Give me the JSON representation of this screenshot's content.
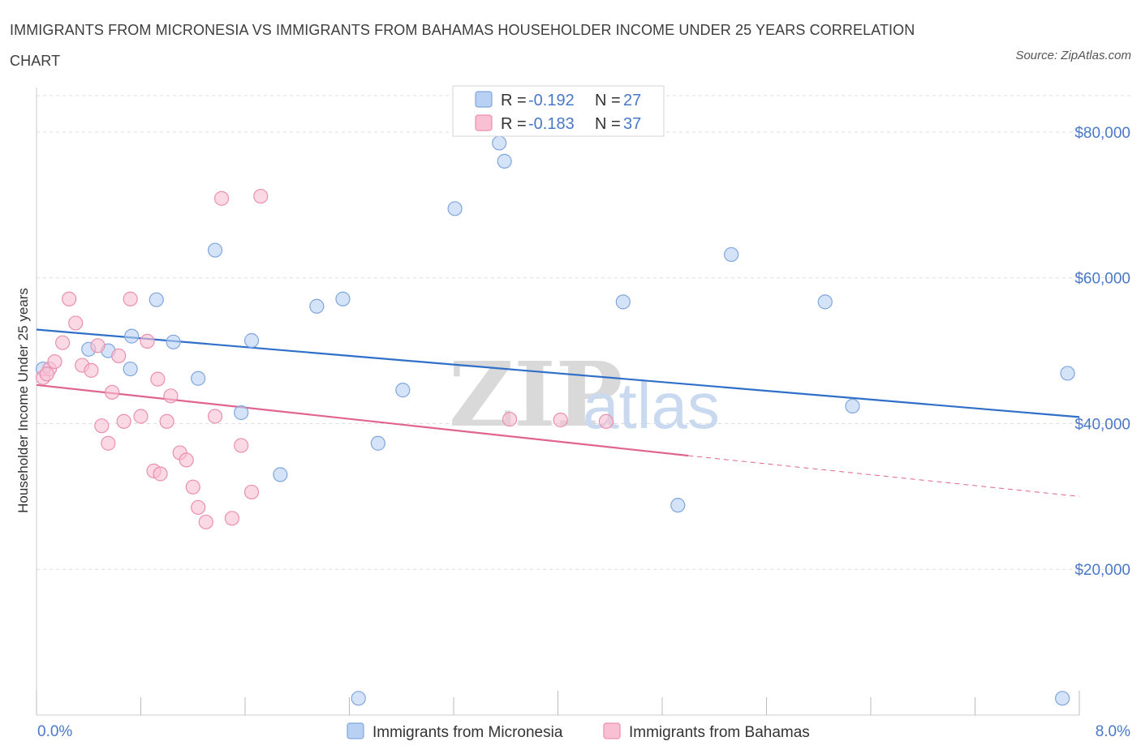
{
  "title": "IMMIGRANTS FROM MICRONESIA VS IMMIGRANTS FROM BAHAMAS HOUSEHOLDER INCOME UNDER 25 YEARS CORRELATION CHART",
  "source": "Source: ZipAtlas.com",
  "watermark": {
    "zip": "ZIP",
    "atlas": "atlas"
  },
  "colors": {
    "micronesia_fill": "#b8d0f2",
    "micronesia_stroke": "#7fa6de",
    "micronesia_line": "#2f6fc8",
    "bahamas_fill": "#f8c0d2",
    "bahamas_stroke": "#eb8fae",
    "bahamas_line": "#e0648e",
    "grid": "#dddddd",
    "tick_text": "#4a78c8"
  },
  "legend": {
    "rows": [
      {
        "r_label": "R = ",
        "r_value": "-0.192",
        "n_label": "N = ",
        "n_value": "27"
      },
      {
        "r_label": "R = ",
        "r_value": "-0.183",
        "n_label": "N = ",
        "n_value": "37"
      }
    ]
  },
  "chart_data": {
    "type": "scatter",
    "title": "IMMIGRANTS FROM MICRONESIA VS IMMIGRANTS FROM BAHAMAS HOUSEHOLDER INCOME UNDER 25 YEARS CORRELATION CHART",
    "xlabel": "",
    "ylabel": "Householder Income Under 25 years",
    "xlim": [
      0,
      8
    ],
    "ylim": [
      0,
      85000
    ],
    "x_tick_labels": [
      "0.0%",
      "8.0%"
    ],
    "y_ticks": [
      20000,
      40000,
      60000,
      80000
    ],
    "y_tick_labels": [
      "$20,000",
      "$40,000",
      "$60,000",
      "$80,000"
    ],
    "grid": true,
    "legend_position": "top-center",
    "series": [
      {
        "name": "Immigrants from Micronesia",
        "R": -0.192,
        "N": 27,
        "points": [
          [
            0.05,
            47500
          ],
          [
            0.4,
            50200
          ],
          [
            0.55,
            50000
          ],
          [
            0.72,
            47500
          ],
          [
            0.73,
            52000
          ],
          [
            0.92,
            57000
          ],
          [
            1.05,
            51200
          ],
          [
            1.24,
            46200
          ],
          [
            1.37,
            63800
          ],
          [
            1.57,
            41500
          ],
          [
            1.65,
            51400
          ],
          [
            1.87,
            33000
          ],
          [
            2.15,
            56100
          ],
          [
            2.35,
            57100
          ],
          [
            2.47,
            2300
          ],
          [
            2.62,
            37300
          ],
          [
            2.81,
            44600
          ],
          [
            3.21,
            69500
          ],
          [
            3.59,
            76000
          ],
          [
            4.5,
            56700
          ],
          [
            4.92,
            28800
          ],
          [
            5.33,
            63200
          ],
          [
            6.05,
            56700
          ],
          [
            6.26,
            42400
          ],
          [
            7.91,
            46900
          ],
          [
            7.87,
            2300
          ],
          [
            3.55,
            78500
          ]
        ],
        "trend": {
          "x": [
            0,
            8
          ],
          "y": [
            52900,
            40900
          ],
          "style": "solid"
        }
      },
      {
        "name": "Immigrants from Bahamas",
        "R": -0.183,
        "N": 37,
        "points": [
          [
            0.05,
            46300
          ],
          [
            0.1,
            47500
          ],
          [
            0.14,
            48500
          ],
          [
            0.2,
            51100
          ],
          [
            0.25,
            57100
          ],
          [
            0.3,
            53800
          ],
          [
            0.35,
            48000
          ],
          [
            0.42,
            47300
          ],
          [
            0.47,
            50700
          ],
          [
            0.5,
            39700
          ],
          [
            0.55,
            37300
          ],
          [
            0.58,
            44300
          ],
          [
            0.63,
            49300
          ],
          [
            0.67,
            40300
          ],
          [
            0.72,
            57100
          ],
          [
            0.8,
            41000
          ],
          [
            0.85,
            51300
          ],
          [
            0.9,
            33500
          ],
          [
            0.93,
            46100
          ],
          [
            0.95,
            33100
          ],
          [
            1.0,
            40300
          ],
          [
            1.03,
            43800
          ],
          [
            1.1,
            36000
          ],
          [
            1.15,
            35000
          ],
          [
            1.2,
            31300
          ],
          [
            1.24,
            28500
          ],
          [
            1.3,
            26500
          ],
          [
            1.37,
            41000
          ],
          [
            1.42,
            70900
          ],
          [
            1.5,
            27000
          ],
          [
            1.57,
            37000
          ],
          [
            1.65,
            30600
          ],
          [
            1.72,
            71200
          ],
          [
            3.63,
            40600
          ],
          [
            4.02,
            40500
          ],
          [
            4.37,
            40300
          ],
          [
            0.08,
            46800
          ]
        ],
        "trend": {
          "x": [
            0,
            5
          ],
          "y": [
            45300,
            35600
          ],
          "style": "solid"
        },
        "trend_extension": {
          "x": [
            5,
            8
          ],
          "y": [
            35600,
            30000
          ],
          "style": "dashed"
        }
      }
    ]
  },
  "bottom_legend": {
    "items": [
      {
        "label": "Immigrants from Micronesia"
      },
      {
        "label": "Immigrants from Bahamas"
      }
    ]
  }
}
